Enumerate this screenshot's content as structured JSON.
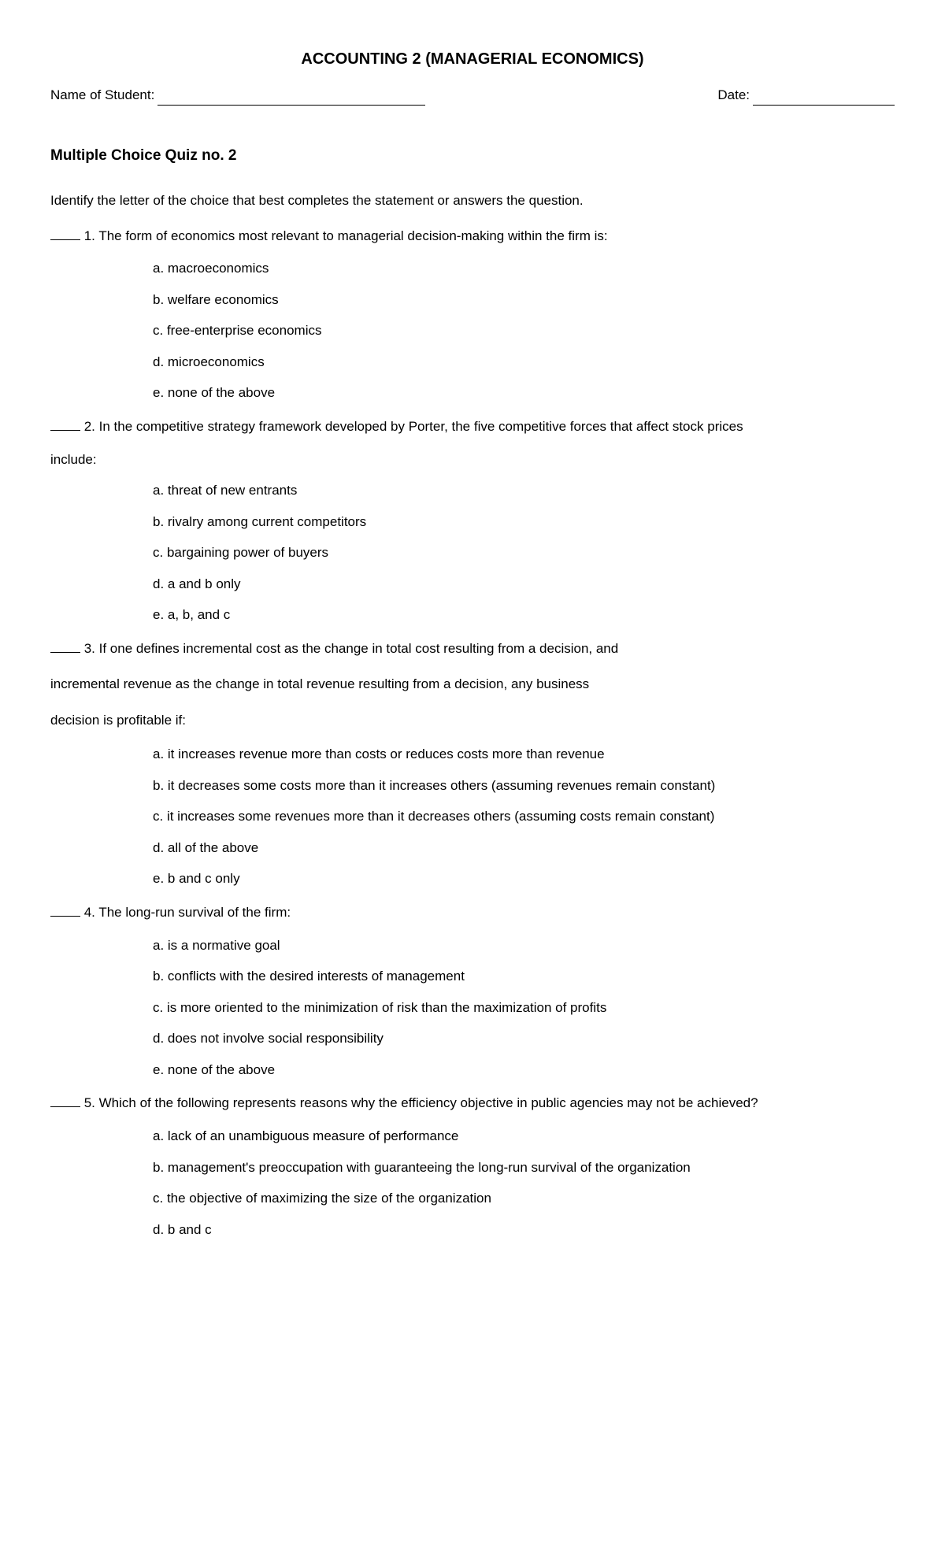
{
  "title": "ACCOUNTING 2 (MANAGERIAL ECONOMICS)",
  "name_label": "Name of Student:",
  "date_label": "Date:",
  "section_heading": "Multiple Choice Quiz no. 2",
  "instructions": "Identify the letter of the choice that best completes the statement or answers the question.",
  "q1": {
    "text": " 1. The form of economics most relevant to managerial decision-making within the firm is:",
    "a": "a. macroeconomics",
    "b": "b. welfare economics",
    "c": "c. free-enterprise economics",
    "d": "d. microeconomics",
    "e": "e. none of the above"
  },
  "q2": {
    "text": " 2. In the competitive strategy framework developed by Porter, the five competitive forces that affect stock prices",
    "include": "include:",
    "a": "a. threat of new entrants",
    "b": "b. rivalry among current competitors",
    "c": "c. bargaining power of buyers",
    "d": "d. a and b only",
    "e": "e. a, b, and c"
  },
  "q3": {
    "text": " 3. If one defines incremental cost as the change in total cost resulting from a decision, and",
    "line2": "incremental revenue as the change in total revenue resulting from a decision, any business",
    "line3": "decision is profitable if:",
    "a": "a. it increases revenue more than costs or reduces costs more than revenue",
    "b": "b. it decreases some costs more than it increases others (assuming revenues remain constant)",
    "c": "c. it increases some revenues more than it decreases others (assuming costs remain constant)",
    "d": "d. all of the above",
    "e": "e. b and c only"
  },
  "q4": {
    "text": " 4. The long-run survival of the firm:",
    "a": "a. is a normative goal",
    "b": "b. conflicts with the desired interests of management",
    "c": "c. is more oriented to the minimization of risk than the maximization of profits",
    "d": "d. does not involve social responsibility",
    "e": "e. none of the above"
  },
  "q5": {
    "text": " 5. Which of the following represents reasons why the efficiency objective in public agencies may not be achieved?",
    "a": "a. lack of an unambiguous measure of performance",
    "b": "b. management's preoccupation with guaranteeing the long-run survival of the organization",
    "c": "c. the objective of maximizing the size of the organization",
    "d": "d. b and c"
  }
}
